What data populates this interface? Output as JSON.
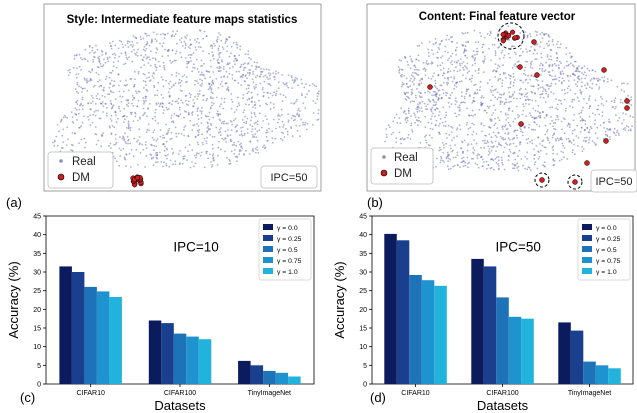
{
  "panels": {
    "a": {
      "letter": "(a)",
      "title": "Style:  Intermediate feature maps statistics",
      "legend": [
        "Real",
        "DM"
      ],
      "badge": "IPC=50"
    },
    "b": {
      "letter": "(b)",
      "title": "Content: Final feature vector",
      "legend": [
        "Real",
        "DM"
      ],
      "badge": "IPC=50"
    },
    "c": {
      "letter": "(c)",
      "annotation": "IPC=10"
    },
    "d": {
      "letter": "(d)",
      "annotation": "IPC=50"
    }
  },
  "colors": {
    "real_points": "#6d72b3",
    "dm_points": "#cc1f1f",
    "series": [
      "#0c1a5e",
      "#1a3f8f",
      "#1e72b8",
      "#1f93cf",
      "#22b3dc"
    ]
  },
  "chart_data": [
    {
      "type": "scatter",
      "title": "Style:  Intermediate feature maps statistics",
      "series": [
        {
          "name": "Real",
          "description": "dense t-SNE cloud"
        },
        {
          "name": "DM",
          "description": "single tight cluster at bottom-right of cloud"
        }
      ]
    },
    {
      "type": "scatter",
      "title": "Content: Final feature vector",
      "series": [
        {
          "name": "Real",
          "description": "dense t-SNE cloud"
        },
        {
          "name": "DM",
          "description": "scattered points and small clusters within the cloud"
        }
      ]
    },
    {
      "type": "bar",
      "annotation": "IPC=10",
      "categories": [
        "CIFAR10",
        "CIFAR100",
        "TinyImageNet"
      ],
      "xlabel": "Datasets",
      "ylabel": "Accuracy (%)",
      "ylim": [
        0,
        45
      ],
      "yticks": [
        0,
        5,
        10,
        15,
        20,
        25,
        30,
        35,
        40,
        45
      ],
      "legend_position": "top-right",
      "series": [
        {
          "name": "γ = 0.0",
          "values": [
            31.5,
            17.0,
            6.2
          ]
        },
        {
          "name": "γ = 0.25",
          "values": [
            30.0,
            16.3,
            5.0
          ]
        },
        {
          "name": "γ = 0.5",
          "values": [
            26.0,
            13.5,
            3.5
          ]
        },
        {
          "name": "γ = 0.75",
          "values": [
            24.8,
            12.7,
            3.0
          ]
        },
        {
          "name": "γ = 1.0",
          "values": [
            23.3,
            12.0,
            2.0
          ]
        }
      ]
    },
    {
      "type": "bar",
      "annotation": "IPC=50",
      "categories": [
        "CIFAR10",
        "CIFAR100",
        "TinyImageNet"
      ],
      "xlabel": "Datasets",
      "ylabel": "Accuracy (%)",
      "ylim": [
        0,
        45
      ],
      "yticks": [
        0,
        5,
        10,
        15,
        20,
        25,
        30,
        35,
        40,
        45
      ],
      "legend_position": "top-right",
      "series": [
        {
          "name": "γ = 0.0",
          "values": [
            40.2,
            33.5,
            16.5
          ]
        },
        {
          "name": "γ = 0.25",
          "values": [
            38.5,
            31.5,
            14.3
          ]
        },
        {
          "name": "γ = 0.5",
          "values": [
            29.2,
            23.2,
            6.0
          ]
        },
        {
          "name": "γ = 0.75",
          "values": [
            27.8,
            18.0,
            5.0
          ]
        },
        {
          "name": "γ = 1.0",
          "values": [
            26.3,
            17.5,
            4.2
          ]
        }
      ]
    }
  ]
}
